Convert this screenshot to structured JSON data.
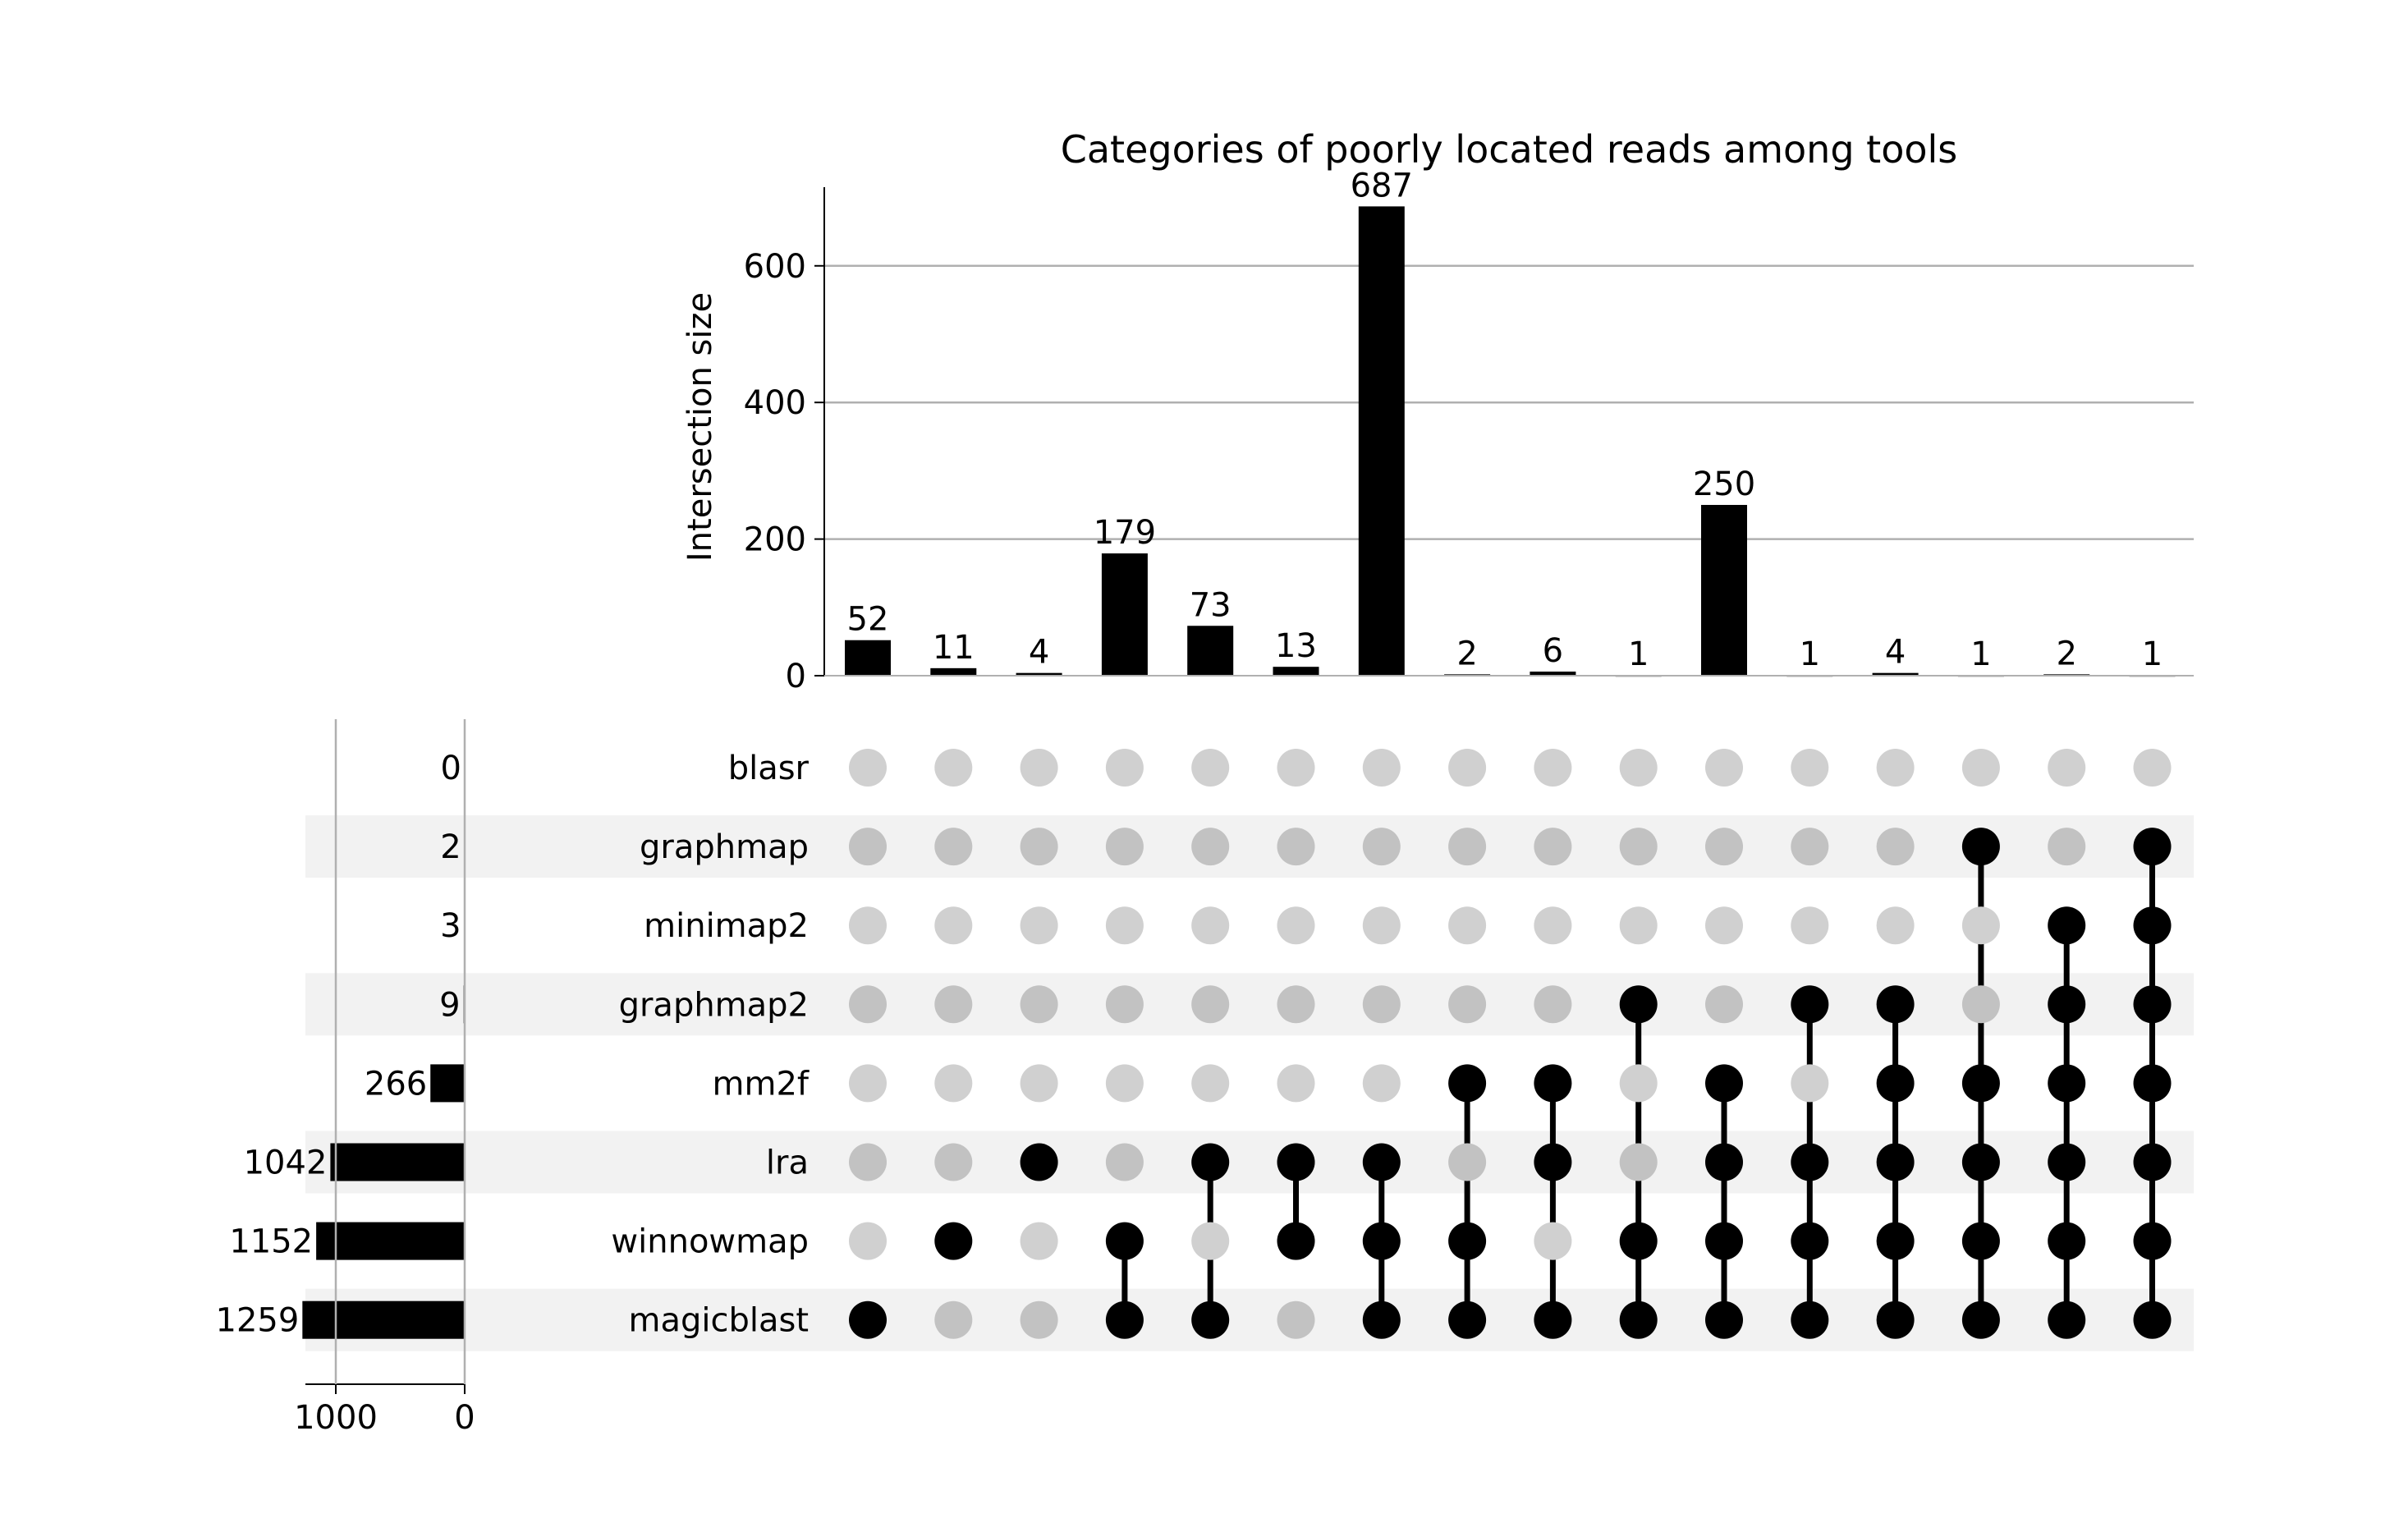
{
  "chart_data": {
    "type": "upset",
    "title": "Categories of poorly located reads among tools",
    "ylabel": "Intersection size",
    "ylim": [
      0,
      720
    ],
    "yticks": [
      0,
      200,
      400,
      600
    ],
    "grid": true,
    "sets": [
      "blasr",
      "graphmap",
      "minimap2",
      "graphmap2",
      "mm2f",
      "lra",
      "winnowmap",
      "magicblast"
    ],
    "set_sizes": [
      0,
      2,
      3,
      9,
      266,
      1042,
      1152,
      1259
    ],
    "set_size_labels": [
      "0",
      "2",
      "3",
      "9",
      "266",
      "1042",
      "1152",
      "1259"
    ],
    "set_size_xlim": [
      1300,
      0
    ],
    "set_size_ticks": [
      1000,
      0
    ],
    "intersections": [
      {
        "size": 52,
        "label": "52",
        "members": [
          "magicblast"
        ]
      },
      {
        "size": 11,
        "label": "11",
        "members": [
          "winnowmap"
        ]
      },
      {
        "size": 4,
        "label": "4",
        "members": [
          "lra"
        ]
      },
      {
        "size": 179,
        "label": "179",
        "members": [
          "winnowmap",
          "magicblast"
        ]
      },
      {
        "size": 73,
        "label": "73",
        "members": [
          "lra",
          "magicblast"
        ]
      },
      {
        "size": 13,
        "label": "13",
        "members": [
          "lra",
          "winnowmap"
        ]
      },
      {
        "size": 687,
        "label": "687",
        "members": [
          "lra",
          "winnowmap",
          "magicblast"
        ]
      },
      {
        "size": 2,
        "label": "2",
        "members": [
          "mm2f",
          "winnowmap",
          "magicblast"
        ]
      },
      {
        "size": 6,
        "label": "6",
        "members": [
          "mm2f",
          "lra",
          "magicblast"
        ]
      },
      {
        "size": 1,
        "label": "1",
        "members": [
          "graphmap2",
          "winnowmap",
          "magicblast"
        ]
      },
      {
        "size": 250,
        "label": "250",
        "members": [
          "mm2f",
          "lra",
          "winnowmap",
          "magicblast"
        ]
      },
      {
        "size": 1,
        "label": "1",
        "members": [
          "graphmap2",
          "lra",
          "winnowmap",
          "magicblast"
        ]
      },
      {
        "size": 4,
        "label": "4",
        "members": [
          "graphmap2",
          "mm2f",
          "lra",
          "winnowmap",
          "magicblast"
        ]
      },
      {
        "size": 1,
        "label": "1",
        "members": [
          "graphmap",
          "mm2f",
          "lra",
          "winnowmap",
          "magicblast"
        ]
      },
      {
        "size": 2,
        "label": "2",
        "members": [
          "minimap2",
          "graphmap2",
          "mm2f",
          "lra",
          "winnowmap",
          "magicblast"
        ]
      },
      {
        "size": 1,
        "label": "1",
        "members": [
          "graphmap",
          "minimap2",
          "graphmap2",
          "mm2f",
          "lra",
          "winnowmap",
          "magicblast"
        ]
      }
    ],
    "colors": {
      "bar": "#000000",
      "dot_active": "#000000",
      "dot_inactive": "#d0d0d0",
      "dot_inactive_shaded": "#c2c2c2",
      "row_shade": "#f2f2f2",
      "grid": "#b0b0b0",
      "axis": "#000000"
    }
  }
}
